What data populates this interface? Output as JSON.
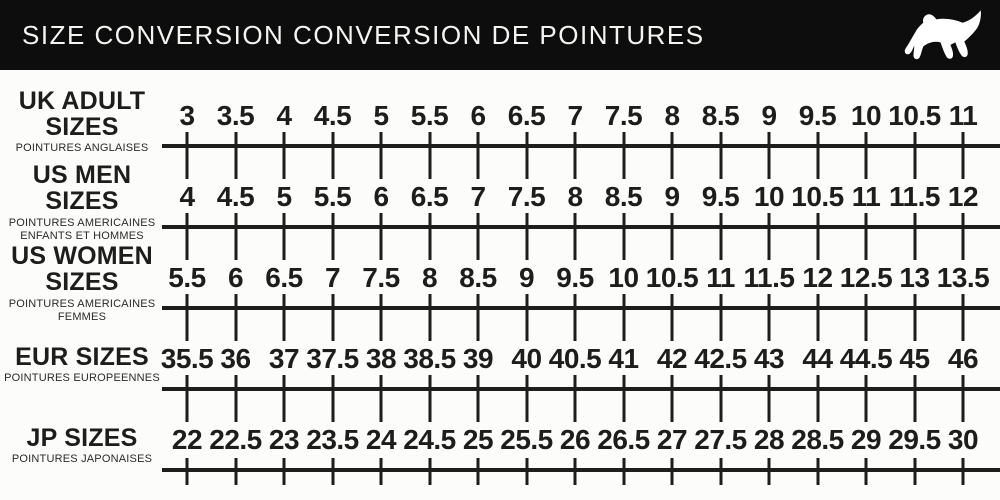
{
  "header": {
    "title": "SIZE CONVERSION CONVERSION DE POINTURES",
    "logo": "puma-cat-logo"
  },
  "colors": {
    "header_bg": "#0d0d0d",
    "header_fg": "#f5f4f1",
    "page_bg": "#fcfcfa",
    "ink": "#1d1d1b"
  },
  "chart_data": {
    "type": "table",
    "title": "SIZE CONVERSION CONVERSION DE POINTURES",
    "columns": 17,
    "layout": "5 aligned ruler scales, ticks per size value",
    "rows": [
      {
        "id": "uk-adult",
        "label": [
          "UK ADULT",
          "SIZES"
        ],
        "sublabel": [
          "POINTURES ANGLAISES"
        ],
        "values": [
          "3",
          "3.5",
          "4",
          "4.5",
          "5",
          "5.5",
          "6",
          "6.5",
          "7",
          "7.5",
          "8",
          "8.5",
          "9",
          "9.5",
          "10",
          "10.5",
          "11"
        ]
      },
      {
        "id": "us-men",
        "label": [
          "US MEN",
          "SIZES"
        ],
        "sublabel": [
          "POINTURES AMERICAINES",
          "ENFANTS ET HOMMES"
        ],
        "values": [
          "4",
          "4.5",
          "5",
          "5.5",
          "6",
          "6.5",
          "7",
          "7.5",
          "8",
          "8.5",
          "9",
          "9.5",
          "10",
          "10.5",
          "11",
          "11.5",
          "12"
        ]
      },
      {
        "id": "us-women",
        "label": [
          "US WOMEN",
          "SIZES"
        ],
        "sublabel": [
          "POINTURES AMERICAINES",
          "FEMMES"
        ],
        "values": [
          "5.5",
          "6",
          "6.5",
          "7",
          "7.5",
          "8",
          "8.5",
          "9",
          "9.5",
          "10",
          "10.5",
          "11",
          "11.5",
          "12",
          "12.5",
          "13",
          "13.5"
        ]
      },
      {
        "id": "eur",
        "label": [
          "EUR SIZES"
        ],
        "sublabel": [
          "POINTURES EUROPEENNES"
        ],
        "values": [
          "35.5",
          "36",
          "37",
          "37.5",
          "38",
          "38.5",
          "39",
          "40",
          "40.5",
          "41",
          "42",
          "42.5",
          "43",
          "44",
          "44.5",
          "45",
          "46"
        ]
      },
      {
        "id": "jp",
        "label": [
          "JP SIZES"
        ],
        "sublabel": [
          "POINTURES JAPONAISES"
        ],
        "values": [
          "22",
          "22.5",
          "23",
          "23.5",
          "24",
          "24.5",
          "25",
          "25.5",
          "26",
          "26.5",
          "27",
          "27.5",
          "28",
          "28.5",
          "29",
          "29.5",
          "30"
        ]
      }
    ]
  }
}
